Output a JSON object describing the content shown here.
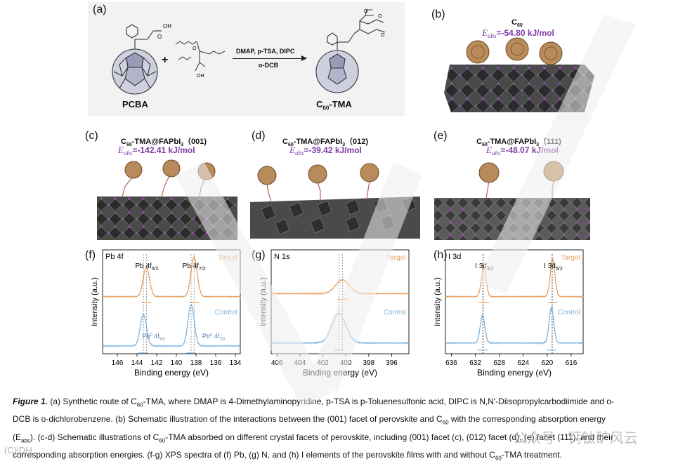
{
  "panels": {
    "a": {
      "label": "(a)",
      "reagent1": "PCBA",
      "plus": "+",
      "conditions_top": "DMAP, p-TSA, DIPC",
      "conditions_bottom": "o-DCB",
      "product_prefix": "C",
      "product_sub": "60",
      "product_suffix": "-TMA"
    },
    "b": {
      "label": "(b)",
      "title_prefix": "C",
      "title_sub": "60",
      "eabs_sym": "E",
      "eabs_sub": "abs",
      "eabs_value": "=-54.80 kJ/mol"
    },
    "c": {
      "label": "(c)",
      "title_prefix": "C",
      "title_sub": "60",
      "title_mid": "-TMA@FAPbI",
      "title_sub2": "3",
      "title_facet": "（001)",
      "eabs_sym": "E",
      "eabs_sub": "abs",
      "eabs_value": "=-142.41 kJ/mol"
    },
    "d": {
      "label": "(d)",
      "title_prefix": "C",
      "title_sub": "60",
      "title_mid": "-TMA@FAPbI",
      "title_sub2": "3",
      "title_facet": "（012)",
      "eabs_sym": "E",
      "eabs_sub": "abs",
      "eabs_value": "=-39.42 kJ/mol"
    },
    "e": {
      "label": "(e)",
      "title_prefix": "C",
      "title_sub": "60",
      "title_mid": "-TMA@FAPbI",
      "title_sub2": "3",
      "title_facet": "（111)",
      "eabs_sym": "E",
      "eabs_sub": "abs",
      "eabs_value": "=-48.07 kJ/mol"
    }
  },
  "chart_data": [
    {
      "type": "line",
      "panel": "(f)",
      "corner_label": "Pb 4f",
      "xlabel": "Binding energy (eV)",
      "ylabel": "Intensity (a.u.)",
      "xlim": [
        147.5,
        133.5
      ],
      "xticks": [
        146,
        144,
        142,
        140,
        138,
        136,
        134
      ],
      "peak_labels": [
        {
          "text": "Pb 4f",
          "sub": "5/2",
          "x": 143.0
        },
        {
          "text": "Pb 4f",
          "sub": "7/2",
          "x": 138.2
        }
      ],
      "extra_labels": [
        {
          "text": "Pb",
          "sup": "0",
          "rest": " 4f",
          "sub": "5/2"
        },
        {
          "text": "Pb",
          "sup": "0",
          "rest": " 4f",
          "sub": "7/2"
        }
      ],
      "series": [
        {
          "name": "Target",
          "color": "#e8a160",
          "baseline": 0.55,
          "peaks": [
            [
              143.05,
              0.3,
              0.45
            ],
            [
              138.2,
              0.4,
              0.45
            ]
          ]
        },
        {
          "name": "Control",
          "color": "#7fb4de",
          "baseline": 0.05,
          "peaks": [
            [
              143.35,
              0.32,
              0.45
            ],
            [
              138.5,
              0.42,
              0.45
            ]
          ]
        }
      ]
    },
    {
      "type": "line",
      "panel": "(g)",
      "corner_label": "N 1s",
      "xlabel": "Binding energy (eV)",
      "ylabel": "Intensity (a.u.)",
      "xlim": [
        406.5,
        394.5
      ],
      "xticks": [
        406,
        404,
        402,
        400,
        398,
        396
      ],
      "series": [
        {
          "name": "Target",
          "color": "#e8a160",
          "baseline": 0.58,
          "peaks": [
            [
              400.3,
              0.14,
              0.85
            ]
          ]
        },
        {
          "name": "Control",
          "color": "#7fb4de",
          "baseline": 0.08,
          "peaks": [
            [
              400.6,
              0.3,
              0.85
            ]
          ]
        }
      ]
    },
    {
      "type": "line",
      "panel": "(h)",
      "corner_label": "I 3d",
      "xlabel": "Binding energy (eV)",
      "ylabel": "Intensity (a.u.)",
      "xlim": [
        637,
        614
      ],
      "xticks": [
        636,
        632,
        628,
        624,
        620,
        616
      ],
      "peak_labels": [
        {
          "text": "I 3d",
          "sub": "3/2",
          "x": 630.5
        },
        {
          "text": "I 3d",
          "sub": "5/2",
          "x": 619.0
        }
      ],
      "series": [
        {
          "name": "Target",
          "color": "#e8a160",
          "baseline": 0.55,
          "peaks": [
            [
              630.6,
              0.3,
              0.55
            ],
            [
              619.1,
              0.38,
              0.55
            ]
          ]
        },
        {
          "name": "Control",
          "color": "#7fb4de",
          "baseline": 0.08,
          "peaks": [
            [
              630.8,
              0.28,
              0.55
            ],
            [
              619.3,
              0.36,
              0.55
            ]
          ]
        }
      ]
    }
  ],
  "caption": {
    "fig_label": "Figure 1.",
    "line1": " (a) Synthetic route of C",
    "line1_sub": "60",
    "line1b": "-TMA, where DMAP is 4-Dimethylaminopyridine, p-TSA is p-Toluenesulfonic acid, DIPC is N,N'-Diisopropylcarbodiimide and o-",
    "line2a": "DCB is o-dichlorobenzene. (b) Schematic illustration of the interactions between the (001) facet of perovskite and C",
    "line2_sub": "60",
    "line2b": " with the corresponding absorption energy",
    "line3a": "(E",
    "line3_sub": "abs",
    "line3b": "). (c-d) Schematic illustrations of C",
    "line3_sub2": "60",
    "line3c": "-TMA absorbed on different crystal facets of perovskite, including (001) facet (c), (012) facet (d), (e) facet (111), and their",
    "line4a": "corresponding absorption energies. (f-g) XPS spectra of (f) Pb, (g) N, and (h) I elements of the perovskite films with and without C",
    "line4_sub": "60",
    "line4b": "-TMA treatment."
  },
  "watermark": {
    "text": "公众号 · 钙钛矿风云",
    "corner": "(C)iDH..."
  }
}
